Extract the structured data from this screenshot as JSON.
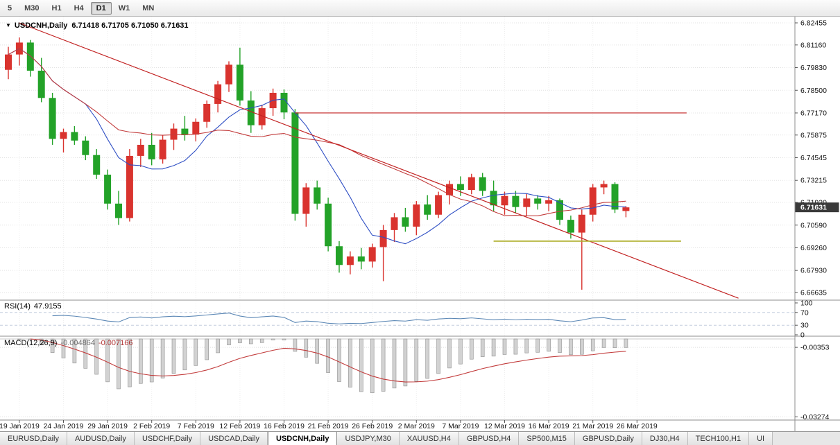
{
  "toolbar": {
    "timeframes": [
      "5",
      "M30",
      "H1",
      "H4",
      "D1",
      "W1",
      "MN"
    ],
    "active_timeframe": "D1"
  },
  "chart": {
    "title_symbol": "USDCNH,Daily",
    "title_ohlc": "6.71418 6.71705 6.71050 6.71631"
  },
  "chart_data": {
    "type": "candlestick",
    "symbol": "USDCNH",
    "timeframe": "Daily",
    "ohlc_current": {
      "open": 6.71418,
      "high": 6.71705,
      "low": 6.7105,
      "close": 6.71631
    },
    "current_price": 6.71631,
    "current_price_display": "6.71631",
    "y_axis_ticks": [
      6.82455,
      6.8116,
      6.7983,
      6.785,
      6.7717,
      6.75875,
      6.74545,
      6.73215,
      6.7192,
      6.7059,
      6.6926,
      6.6793,
      6.66635
    ],
    "x_axis_labels": [
      "19 Jan 2019",
      "24 Jan 2019",
      "29 Jan 2019",
      "2 Feb 2019",
      "7 Feb 2019",
      "12 Feb 2019",
      "16 Feb 2019",
      "21 Feb 2019",
      "26 Feb 2019",
      "2 Mar 2019",
      "7 Mar 2019",
      "12 Mar 2019",
      "16 Mar 2019",
      "21 Mar 2019",
      "26 Mar 2019"
    ],
    "x_label_start_index": 1,
    "x_label_every": 4,
    "candles": [
      [
        6.797,
        6.8105,
        6.7915,
        6.806
      ],
      [
        6.806,
        6.816,
        6.7995,
        6.813
      ],
      [
        6.813,
        6.8145,
        6.793,
        6.7965
      ],
      [
        6.7965,
        6.804,
        6.778,
        6.7805
      ],
      [
        6.7805,
        6.7835,
        6.753,
        6.7565
      ],
      [
        6.7565,
        6.7625,
        6.7485,
        6.7605
      ],
      [
        6.7605,
        6.764,
        6.753,
        6.7555
      ],
      [
        6.7555,
        6.758,
        6.744,
        6.747
      ],
      [
        6.747,
        6.7505,
        6.733,
        6.7355
      ],
      [
        6.7355,
        6.7385,
        6.715,
        6.7185
      ],
      [
        6.7185,
        6.726,
        6.706,
        6.71
      ],
      [
        6.71,
        6.7505,
        6.708,
        6.7465
      ],
      [
        6.7465,
        6.7565,
        6.74,
        6.753
      ],
      [
        6.753,
        6.76,
        6.741,
        6.7445
      ],
      [
        6.7445,
        6.7585,
        6.742,
        6.756
      ],
      [
        6.756,
        6.7655,
        6.75,
        6.7625
      ],
      [
        6.7625,
        6.77,
        6.7555,
        6.759
      ],
      [
        6.759,
        6.7685,
        6.755,
        6.7665
      ],
      [
        6.7665,
        6.779,
        6.763,
        6.777
      ],
      [
        6.777,
        6.7905,
        6.772,
        6.7885
      ],
      [
        6.7885,
        6.802,
        6.784,
        6.8
      ],
      [
        6.8,
        6.81,
        6.776,
        6.779
      ],
      [
        6.779,
        6.7845,
        6.76,
        6.7645
      ],
      [
        6.7645,
        6.7765,
        6.762,
        6.7745
      ],
      [
        6.7745,
        6.786,
        6.77,
        6.7835
      ],
      [
        6.7835,
        6.7855,
        6.768,
        6.772
      ],
      [
        6.772,
        6.774,
        6.7085,
        6.7125
      ],
      [
        6.7125,
        6.7305,
        6.705,
        6.728
      ],
      [
        6.728,
        6.732,
        6.715,
        6.7185
      ],
      [
        6.7185,
        6.722,
        6.6905,
        6.6935
      ],
      [
        6.6935,
        6.6965,
        6.678,
        6.6825
      ],
      [
        6.6825,
        6.6905,
        6.677,
        6.6875
      ],
      [
        6.6875,
        6.6925,
        6.68,
        6.6845
      ],
      [
        6.6845,
        6.695,
        6.681,
        6.693
      ],
      [
        6.693,
        6.706,
        6.673,
        6.703
      ],
      [
        6.703,
        6.713,
        6.696,
        6.7105
      ],
      [
        6.7105,
        6.716,
        6.702,
        6.705
      ],
      [
        6.705,
        6.72,
        6.7,
        6.718
      ],
      [
        6.718,
        6.7235,
        6.709,
        6.712
      ],
      [
        6.712,
        6.7255,
        6.71,
        6.7235
      ],
      [
        6.7235,
        6.732,
        6.718,
        6.73
      ],
      [
        6.73,
        6.7345,
        6.723,
        6.7265
      ],
      [
        6.7265,
        6.736,
        6.724,
        6.734
      ],
      [
        6.734,
        6.7365,
        6.723,
        6.726
      ],
      [
        6.726,
        6.732,
        6.714,
        6.7175
      ],
      [
        6.7175,
        6.7255,
        6.712,
        6.723
      ],
      [
        6.723,
        6.726,
        6.713,
        6.7165
      ],
      [
        6.7165,
        6.7245,
        6.711,
        6.7215
      ],
      [
        6.7215,
        6.7235,
        6.715,
        6.7185
      ],
      [
        6.7185,
        6.723,
        6.714,
        6.7205
      ],
      [
        6.7205,
        6.7215,
        6.706,
        6.709
      ],
      [
        6.709,
        6.7115,
        6.698,
        6.7015
      ],
      [
        6.7015,
        6.715,
        6.668,
        6.712
      ],
      [
        6.712,
        6.73,
        6.708,
        6.728
      ],
      [
        6.728,
        6.732,
        6.724,
        6.73
      ],
      [
        6.73,
        6.731,
        6.713,
        6.715
      ],
      [
        6.71418,
        6.71705,
        6.7105,
        6.71631
      ]
    ],
    "moving_averages": [
      {
        "period": 8,
        "color": "#2f4fc4"
      },
      {
        "period": 20,
        "color": "#c23b3b"
      }
    ],
    "overlays": {
      "trendline": {
        "from_index": 1,
        "from_price": 6.8245,
        "to_index": 66.2,
        "to_price": 6.663,
        "color": "#c22222"
      },
      "horizontal_line": {
        "price": 6.7717,
        "from_index": 26,
        "to_index": 61.5,
        "color": "#c22222"
      },
      "support_segment": {
        "price": 6.6965,
        "from_index": 44,
        "to_index": 61,
        "color": "#aeae2a"
      }
    },
    "indicators": {
      "rsi": {
        "name": "RSI(14)",
        "period": 14,
        "value_display": "47.9155",
        "levels": [
          100,
          70,
          30,
          0
        ],
        "dashed_levels": [
          70,
          30
        ],
        "color": "#5b87b5",
        "range": [
          0,
          100
        ]
      },
      "macd": {
        "name": "MACD(12,26,9)",
        "fast": 12,
        "slow": 26,
        "signal": 9,
        "value_main": "-0.004864",
        "value_signal": "-0.007166",
        "scale_ticks": [
          "-0.00353",
          "-0.03274"
        ],
        "histogram_color": "#d2d2d2",
        "signal_color": "#c23b3b",
        "range": [
          0,
          -0.0335
        ]
      }
    },
    "colors": {
      "up": "#d9332e",
      "down": "#23a228",
      "grid": "#e3e3e3",
      "background": "#ffffff",
      "separator": "#8e8e8e",
      "badge_bg": "#3a3a3a",
      "badge_text": "#ffffff"
    }
  },
  "tabs": {
    "items": [
      "EURUSD,Daily",
      "AUDUSD,Daily",
      "USDCHF,Daily",
      "USDCAD,Daily",
      "USDCNH,Daily",
      "USDJPY,M30",
      "XAUUSD,H4",
      "GBPUSD,H4",
      "SP500,M15",
      "GBPUSD,Daily",
      "DJ30,H4",
      "TECH100,H1",
      "UI"
    ],
    "active": "USDCNH,Daily"
  }
}
